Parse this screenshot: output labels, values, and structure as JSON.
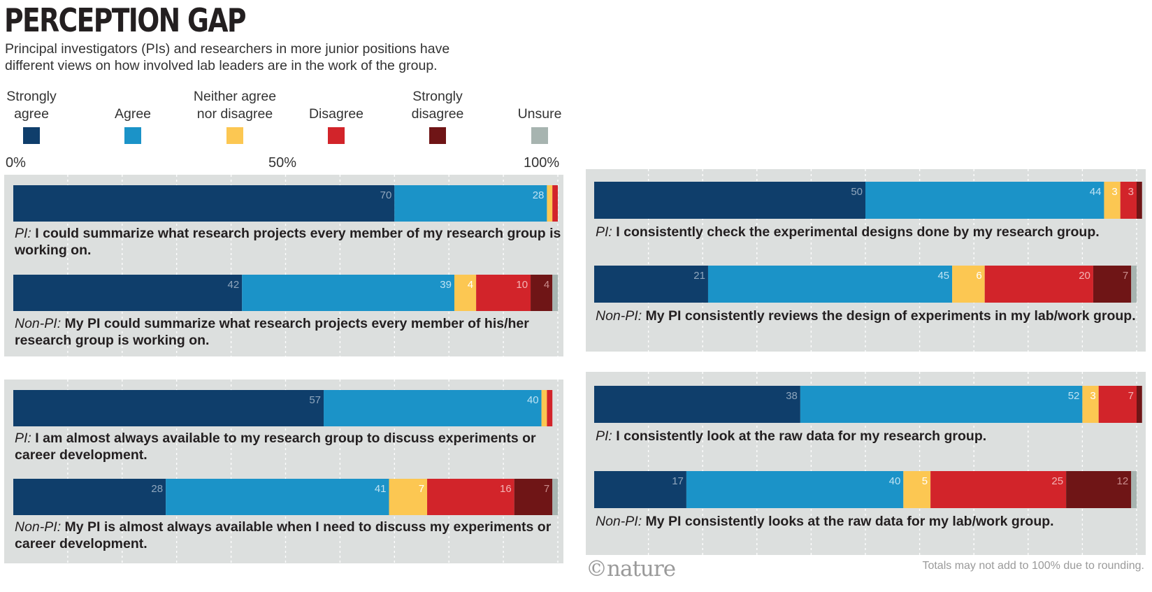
{
  "title": "PERCEPTION GAP",
  "subtitle": "Principal investigators (PIs) and researchers in more junior positions have different views on how involved lab leaders are in the work of the group.",
  "legend": [
    {
      "label": "Strongly agree",
      "color": "#0f3e6b"
    },
    {
      "label": "Agree",
      "color": "#1b93c8"
    },
    {
      "label": "Neither agree nor disagree",
      "color": "#fcc752"
    },
    {
      "label": "Disagree",
      "color": "#d2242a"
    },
    {
      "label": "Strongly disagree",
      "color": "#6f1516"
    },
    {
      "label": "Unsure",
      "color": "#a7b4b0"
    }
  ],
  "axis": {
    "min_label": "0%",
    "mid_label": "50%",
    "max_label": "100%"
  },
  "footnote": "Totals may not add to 100% due to rounding.",
  "logo": "©nature",
  "chart_data": {
    "type": "bar",
    "orientation": "horizontal-stacked",
    "xlim": [
      0,
      100
    ],
    "categories": [
      "Strongly agree",
      "Agree",
      "Neither agree nor disagree",
      "Disagree",
      "Strongly disagree",
      "Unsure"
    ],
    "panels": [
      {
        "rows": [
          {
            "who": "PI:",
            "text": "I could summarize what research projects every member of my research group is working on.",
            "values": [
              70,
              28,
              1,
              1,
              0,
              0
            ],
            "labels": [
              "70",
              "28",
              "",
              "",
              "",
              ""
            ]
          },
          {
            "who": "Non-PI:",
            "text": "My PI could summarize what research projects every member of his/her research group is working on.",
            "values": [
              42,
              39,
              4,
              10,
              4,
              1
            ],
            "labels": [
              "42",
              "39",
              "4",
              "10",
              "4",
              ""
            ]
          }
        ]
      },
      {
        "rows": [
          {
            "who": "PI:",
            "text": "I am almost always available to my research group to discuss experiments or career development.",
            "values": [
              57,
              40,
              1,
              1,
              0,
              0
            ],
            "labels": [
              "57",
              "40",
              "",
              "",
              "",
              ""
            ]
          },
          {
            "who": "Non-PI:",
            "text": "My PI is almost always available when I need to discuss my experiments or career development.",
            "values": [
              28,
              41,
              7,
              16,
              7,
              1
            ],
            "labels": [
              "28",
              "41",
              "7",
              "16",
              "7",
              ""
            ]
          }
        ]
      },
      {
        "rows": [
          {
            "who": "PI:",
            "text": "I consistently check the experimental designs done by my research group.",
            "values": [
              50,
              44,
              3,
              3,
              1,
              0
            ],
            "labels": [
              "50",
              "44",
              "3",
              "3",
              "",
              ""
            ]
          },
          {
            "who": "Non-PI:",
            "text": "My PI consistently reviews the design of experiments in my lab/work group.",
            "values": [
              21,
              45,
              6,
              20,
              7,
              1
            ],
            "labels": [
              "21",
              "45",
              "6",
              "20",
              "7",
              ""
            ]
          }
        ]
      },
      {
        "rows": [
          {
            "who": "PI:",
            "text": "I consistently look at the raw data for my research group.",
            "values": [
              38,
              52,
              3,
              7,
              1,
              0
            ],
            "labels": [
              "38",
              "52",
              "3",
              "7",
              "",
              ""
            ]
          },
          {
            "who": "Non-PI:",
            "text": "My PI consistently looks at the raw data for my lab/work group.",
            "values": [
              17,
              40,
              5,
              25,
              12,
              1
            ],
            "labels": [
              "17",
              "40",
              "5",
              "25",
              "12",
              ""
            ]
          }
        ]
      }
    ]
  }
}
